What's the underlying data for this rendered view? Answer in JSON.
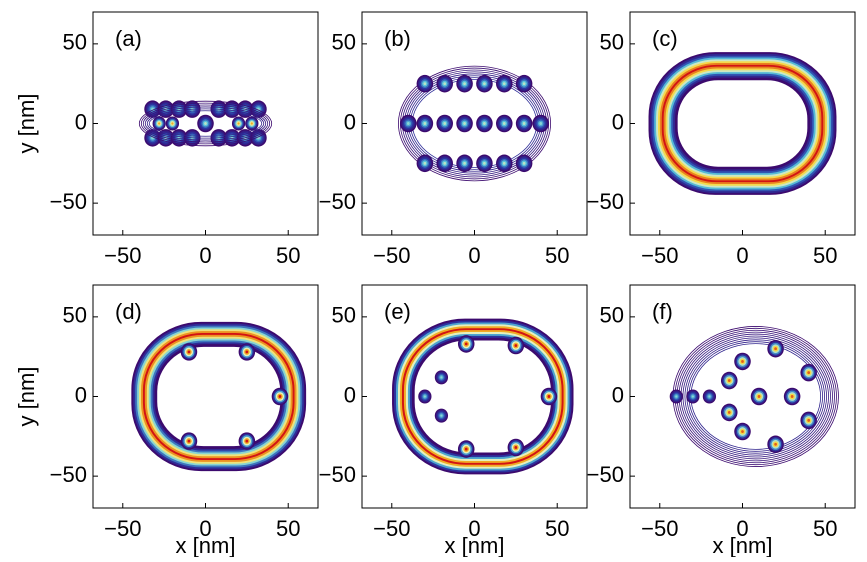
{
  "chart_data": [
    {
      "type": "contour",
      "panel": "(a)",
      "ylabel": "y [nm]",
      "xlim": [
        -68,
        68
      ],
      "ylim": [
        -70,
        70
      ],
      "xticks": [
        {
          "value": -50,
          "label": "−50"
        },
        0,
        50
      ],
      "yticks": [
        {
          "value": -50,
          "label": "−50"
        },
        0,
        50
      ]
    },
    {
      "type": "contour",
      "panel": "(b)",
      "xlim": [
        -68,
        68
      ],
      "ylim": [
        -70,
        70
      ],
      "xticks": [
        {
          "value": -50,
          "label": "−50"
        },
        0,
        50
      ],
      "yticks": [
        {
          "value": -50,
          "label": "−50"
        },
        0,
        50
      ]
    },
    {
      "type": "contour",
      "panel": "(c)",
      "xlim": [
        -68,
        68
      ],
      "ylim": [
        -70,
        70
      ],
      "xticks": [
        {
          "value": -50,
          "label": "−50"
        },
        0,
        50
      ],
      "yticks": [
        {
          "value": -50,
          "label": "−50"
        },
        0,
        50
      ]
    },
    {
      "type": "contour",
      "panel": "(d)",
      "xlabel": "x [nm]",
      "ylabel": "y [nm]",
      "xlim": [
        -68,
        68
      ],
      "ylim": [
        -70,
        70
      ],
      "xticks": [
        {
          "value": -50,
          "label": "−50"
        },
        0,
        50
      ],
      "yticks": [
        {
          "value": -50,
          "label": "−50"
        },
        0,
        50
      ]
    },
    {
      "type": "contour",
      "panel": "(e)",
      "xlabel": "x [nm]",
      "xlim": [
        -68,
        68
      ],
      "ylim": [
        -70,
        70
      ],
      "xticks": [
        {
          "value": -50,
          "label": "−50"
        },
        0,
        50
      ],
      "yticks": [
        {
          "value": -50,
          "label": "−50"
        },
        0,
        50
      ]
    },
    {
      "type": "contour",
      "panel": "(f)",
      "xlabel": "x [nm]",
      "xlim": [
        -68,
        68
      ],
      "ylim": [
        -70,
        70
      ],
      "xticks": [
        {
          "value": -50,
          "label": "−50"
        },
        0,
        50
      ],
      "yticks": [
        {
          "value": -50,
          "label": "−50"
        },
        0,
        50
      ]
    }
  ]
}
